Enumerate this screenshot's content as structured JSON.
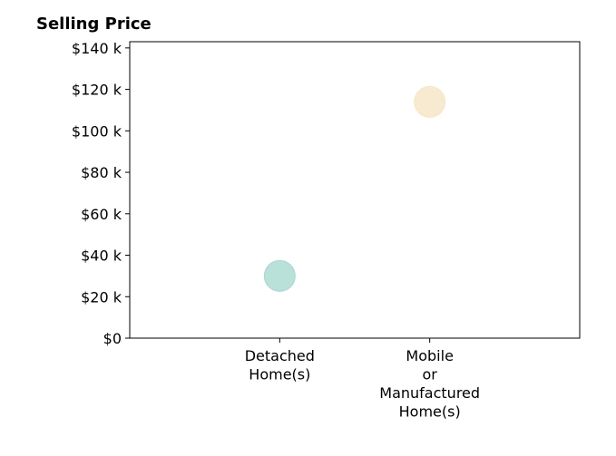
{
  "chart_data": {
    "type": "scatter",
    "title": "Selling Price",
    "xlabel": "",
    "ylabel": "",
    "categories": [
      [
        "Detached",
        "Home(s)"
      ],
      [
        "Mobile",
        "or",
        "Manufactured",
        "Home(s)"
      ]
    ],
    "points": [
      {
        "category": 0,
        "value": 30000,
        "color": "#a8d8d0"
      },
      {
        "category": 1,
        "value": 114000,
        "color": "#f6e5c4"
      }
    ],
    "yticks": [
      {
        "value": 0,
        "label": "$0"
      },
      {
        "value": 20000,
        "label": "$20 k"
      },
      {
        "value": 40000,
        "label": "$40 k"
      },
      {
        "value": 60000,
        "label": "$60 k"
      },
      {
        "value": 80000,
        "label": "$80 k"
      },
      {
        "value": 100000,
        "label": "$100 k"
      },
      {
        "value": 120000,
        "label": "$120 k"
      },
      {
        "value": 140000,
        "label": "$140 k"
      }
    ],
    "ylim": [
      0,
      143000
    ],
    "grid": false
  }
}
